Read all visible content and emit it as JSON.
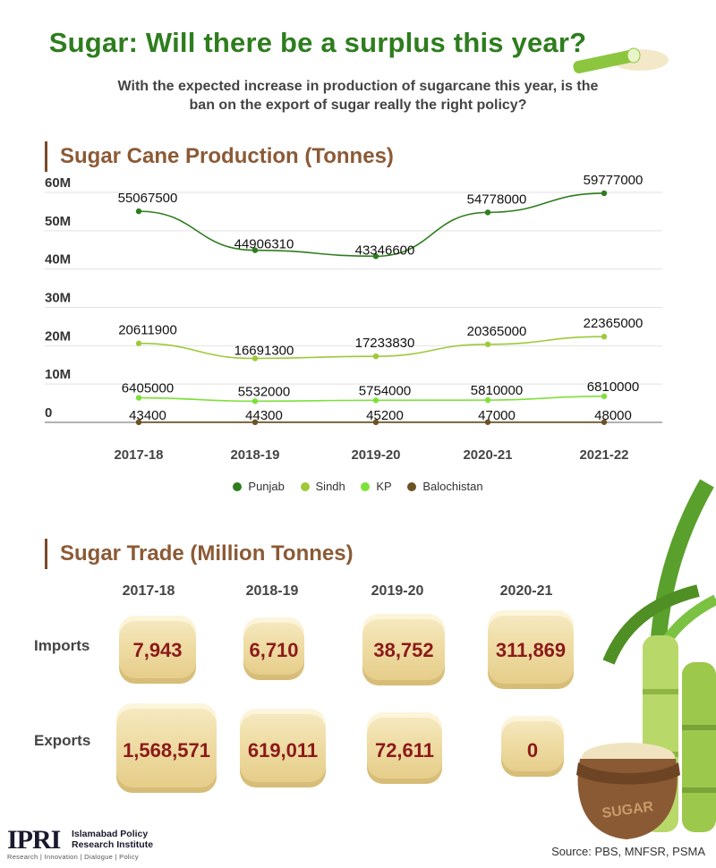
{
  "header": {
    "title": "Sugar: Will there be a surplus this year?",
    "subtitle_line1": "With the expected increase in production of sugarcane this year, is the",
    "subtitle_line2": "ban on the export of sugar really the right policy?"
  },
  "production": {
    "heading": "Sugar Cane Production (Tonnes)"
  },
  "chart_data": {
    "type": "line",
    "title": "Sugar Cane Production (Tonnes)",
    "categories": [
      "2017-18",
      "2018-19",
      "2019-20",
      "2020-21",
      "2021-22"
    ],
    "y_ticks": [
      "0",
      "10M",
      "20M",
      "30M",
      "40M",
      "50M",
      "60M"
    ],
    "ylim": [
      0,
      60000000
    ],
    "grid": true,
    "legend_position": "bottom",
    "series": [
      {
        "name": "Punjab",
        "color": "#2e7d1e",
        "values": [
          55067500,
          44906310,
          43346600,
          54778000,
          59777000
        ]
      },
      {
        "name": "Sindh",
        "color": "#9ec93a",
        "values": [
          20611900,
          16691300,
          17233830,
          20365000,
          22365000
        ]
      },
      {
        "name": "KP",
        "color": "#7ee03a",
        "values": [
          6405000,
          5532000,
          5754000,
          5810000,
          6810000
        ]
      },
      {
        "name": "Balochistan",
        "color": "#6b5224",
        "values": [
          43400,
          44300,
          45200,
          47000,
          48000
        ]
      }
    ]
  },
  "trade": {
    "heading": "Sugar Trade (Million Tonnes)",
    "years": [
      "2017-18",
      "2018-19",
      "2019-20",
      "2020-21"
    ],
    "imports_label": "Imports",
    "exports_label": "Exports",
    "imports": [
      "7,943",
      "6,710",
      "38,752",
      "311,869"
    ],
    "exports": [
      "1,568,571",
      "619,011",
      "72,611",
      "0"
    ]
  },
  "footer": {
    "logo": "IPRI",
    "org_line1": "Islamabad Policy",
    "org_line2": "Research Institute",
    "tagline": "Research | Innovation | Dialogue | Policy",
    "source": "Source: PBS, MNFSR, PSMA"
  }
}
